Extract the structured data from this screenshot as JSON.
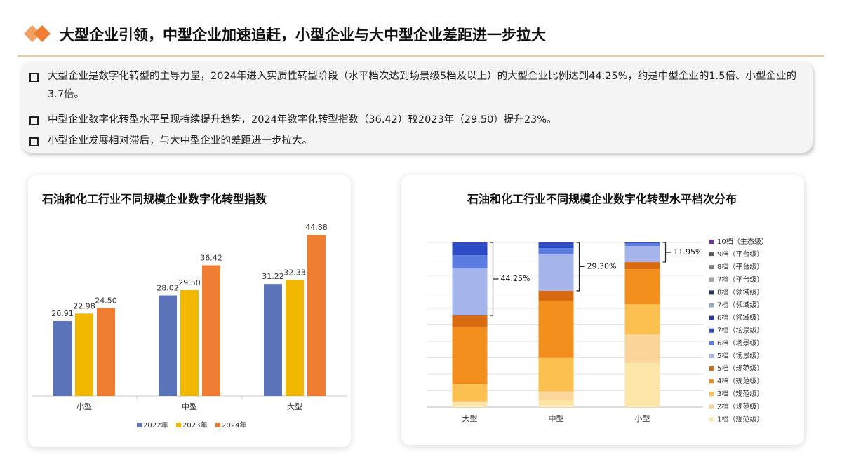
{
  "header": {
    "title": "大型企业引领，中型企业加速追赶，小型企业与大中型企业差距进一步拉大"
  },
  "bullets": [
    "大型企业是数字化转型的主导力量，2024年进入实质性转型阶段（水平档次达到场景级5档及以上）的大型企业比例达到44.25%，约是中型企业的1.5倍、小型企业的3.7倍。",
    "中型企业数字化转型水平呈现持续提升趋势，2024年数字化转型指数（36.42）较2023年（29.50）提升23%。",
    "小型企业发展相对滞后，与大中型企业的差距进一步拉大。"
  ],
  "chart_data": [
    {
      "type": "bar",
      "title": "石油和化工行业不同规模企业数字化转型指数",
      "categories": [
        "小型",
        "中型",
        "大型"
      ],
      "ylim": [
        0,
        50
      ],
      "series": [
        {
          "name": "2022年",
          "color": "#5b73b9",
          "values": [
            20.91,
            28.02,
            31.22
          ],
          "value_labels": [
            "20.91",
            "28.02",
            "31.22"
          ]
        },
        {
          "name": "2023年",
          "color": "#f2b800",
          "values": [
            22.98,
            29.5,
            32.33
          ],
          "value_labels": [
            "22.98",
            "29.50",
            "32.33"
          ]
        },
        {
          "name": "2024年",
          "color": "#ee7d31",
          "values": [
            24.5,
            36.42,
            44.88
          ],
          "value_labels": [
            "24.50",
            "36.42",
            "44.88"
          ]
        }
      ]
    },
    {
      "type": "stacked-bar",
      "title": "石油和化工行业不同规模企业数字化转型水平档次分布",
      "categories": [
        "大型",
        "中型",
        "小型"
      ],
      "ylim": [
        0,
        100
      ],
      "yticks": [
        0,
        10,
        20,
        30,
        40,
        50,
        60,
        70,
        80,
        90,
        100
      ],
      "grid": true,
      "annotations": [
        "44.25%",
        "29.30%",
        "11.95%"
      ],
      "series": [
        {
          "name": "10档（生态级）",
          "color": "#7030a0",
          "values": [
            0,
            0,
            0
          ]
        },
        {
          "name": "9档（平台级）",
          "color": "#595959",
          "values": [
            0,
            0,
            0
          ]
        },
        {
          "name": "8档（平台级）",
          "color": "#7f7f7f",
          "values": [
            0,
            0,
            0
          ]
        },
        {
          "name": "7档（平台级）",
          "color": "#a5a5a5",
          "values": [
            0,
            0,
            0
          ]
        },
        {
          "name": "8档（领域级）",
          "color": "#203864",
          "values": [
            0,
            0,
            0
          ]
        },
        {
          "name": "7档（领域级）",
          "color": "#8fa5c8",
          "values": [
            0,
            0,
            0
          ]
        },
        {
          "name": "6档（领域级）",
          "color": "#2a3a9c",
          "values": [
            0,
            0,
            0
          ]
        },
        {
          "name": "7档（场景级）",
          "color": "#2e4bc6",
          "values": [
            7.75,
            3.4,
            0.45
          ]
        },
        {
          "name": "6档（场景级）",
          "color": "#5b7be0",
          "values": [
            8,
            3.8,
            1.7
          ]
        },
        {
          "name": "5档（场景级）",
          "color": "#a6b4ec",
          "values": [
            28.5,
            22.1,
            9.8
          ]
        },
        {
          "name": "5档（规范级）",
          "color": "#d86a10",
          "values": [
            7,
            6,
            4.3
          ]
        },
        {
          "name": "4档（规范级）",
          "color": "#f28e1c",
          "values": [
            34.75,
            34.8,
            21.3
          ]
        },
        {
          "name": "3档（规范级）",
          "color": "#fbc04f",
          "values": [
            10.5,
            20.4,
            18.3
          ]
        },
        {
          "name": "2档（规范级）",
          "color": "#fbd59a",
          "values": [
            0.5,
            5.5,
            17.4
          ]
        },
        {
          "name": "1档（规范级）",
          "color": "#fde7a8",
          "values": [
            3,
            4,
            26.75
          ]
        }
      ]
    }
  ]
}
